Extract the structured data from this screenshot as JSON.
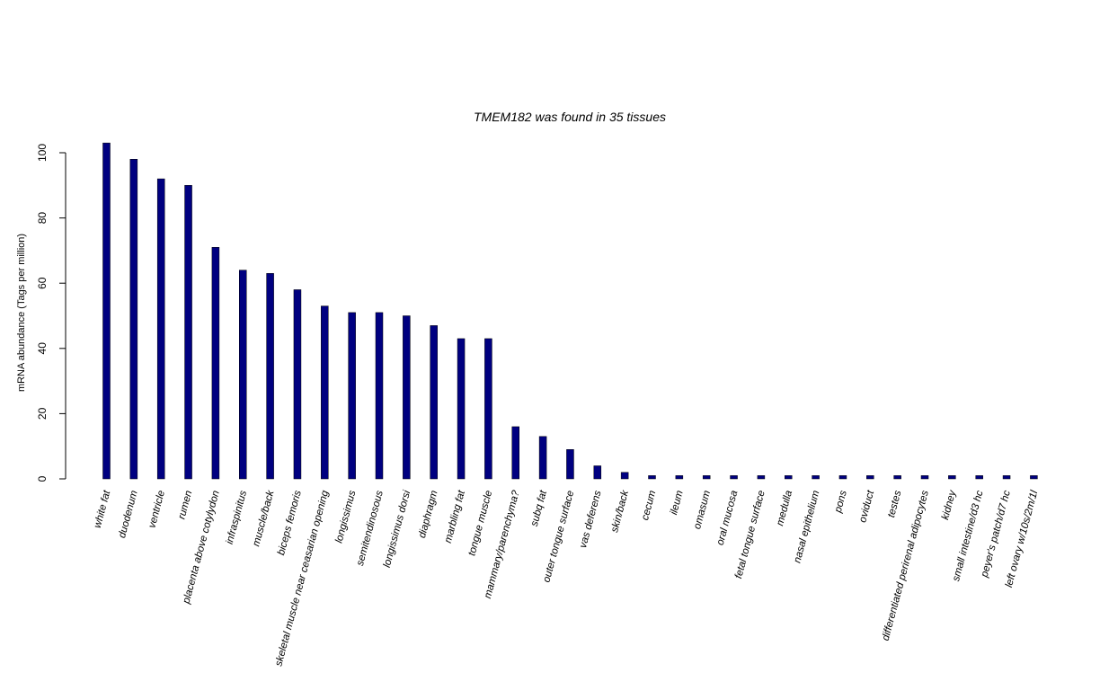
{
  "chart_data": {
    "type": "bar",
    "title": "TMEM182  was found in  35  tissues",
    "xlabel": "",
    "ylabel": "mRNA abundance (Tags per million)",
    "ylim": [
      0,
      103
    ],
    "yticks": [
      0,
      20,
      40,
      60,
      80,
      100
    ],
    "grid": false,
    "bar_color": "#000080",
    "categories": [
      "white fat",
      "duodenum",
      "ventricle",
      "rumen",
      "placenta above cotylydon",
      "infraspinitus",
      "muscle/back",
      "biceps femoris",
      "skeletal muscle near ceasarian opening",
      "longissimus",
      "semitendinosous",
      "longissimus dorsi",
      "diaphragm",
      "marbling fat",
      "tongue muscle",
      "mammary/parenchyma?",
      "subq fat",
      "outer tongue surface",
      "vas deferens",
      "skin/back",
      "cecum",
      "ileum",
      "omasum",
      "oral mucosa",
      "fetal tongue surface",
      "medulla",
      "nasal epithelium",
      "pons",
      "oviduct",
      "testes",
      "differentiated perirenal adipocytes",
      "kidney",
      "small intestine/d3 hc",
      "peyer's patch/d7 hc",
      "left ovary w/10s/2m/1l"
    ],
    "values": [
      103,
      98,
      92,
      90,
      71,
      64,
      63,
      58,
      53,
      51,
      51,
      50,
      47,
      43,
      43,
      16,
      13,
      9,
      4,
      2,
      1,
      1,
      1,
      1,
      1,
      1,
      1,
      1,
      1,
      1,
      1,
      1,
      1,
      1,
      1
    ]
  }
}
